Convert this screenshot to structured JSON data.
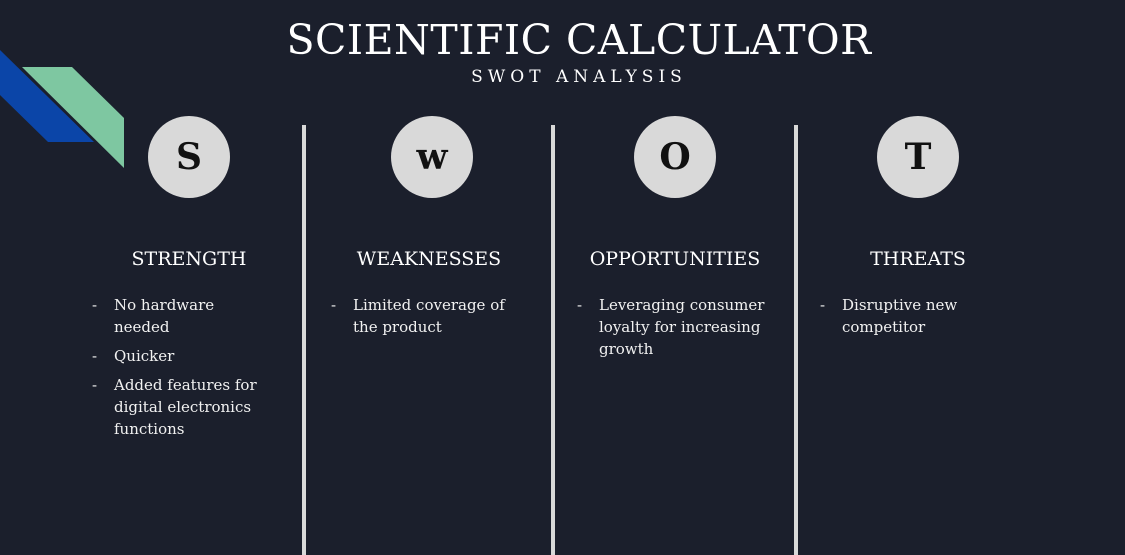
{
  "title": "SCIENTIFIC CALCULATOR",
  "subtitle": "SWOT ANALYSIS",
  "colors": {
    "background": "#1b1f2c",
    "circle": "#d9d9d9",
    "divider": "#d9d9d9",
    "accent_blue": "#0b45a8",
    "accent_green": "#7ec7a1"
  },
  "columns": [
    {
      "letter": "S",
      "heading": "STRENGTH",
      "points": [
        "No hardware needed",
        "Quicker",
        "Added features for digital electronics functions"
      ]
    },
    {
      "letter": "w",
      "heading": "WEAKNESSES",
      "points": [
        "Limited coverage of the product"
      ]
    },
    {
      "letter": "O",
      "heading": "OPPORTUNITIES",
      "points": [
        "Leveraging consumer loyalty for increasing growth"
      ]
    },
    {
      "letter": "T",
      "heading": "THREATS",
      "points": [
        "Disruptive new competitor"
      ]
    }
  ]
}
